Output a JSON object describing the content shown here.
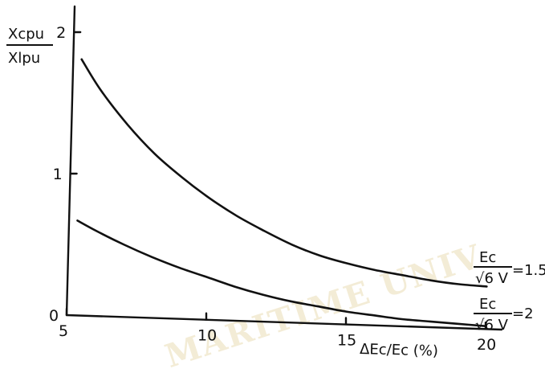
{
  "chart_data": {
    "type": "line",
    "x_axis": {
      "label": "ΔEc/Ec (%)",
      "range": [
        5,
        20
      ],
      "ticks": [
        {
          "value": 5,
          "label": "5"
        },
        {
          "value": 10,
          "label": "10"
        },
        {
          "value": 15,
          "label": "15"
        },
        {
          "value": 20,
          "label": "20"
        }
      ]
    },
    "y_axis": {
      "label_numerator": "Xcpu",
      "label_denominator": "Xlpu",
      "range": [
        0,
        2
      ],
      "ticks": [
        {
          "value": 0,
          "label": "0"
        },
        {
          "value": 1,
          "label": "1"
        },
        {
          "value": 2,
          "label": "2"
        }
      ]
    },
    "series": [
      {
        "label_numerator": "Ec",
        "label_denominator": "√6 V",
        "label_suffix": "=1.5",
        "x": [
          5.3,
          6,
          7,
          8,
          9,
          10,
          11,
          12,
          13,
          14,
          15,
          16,
          17,
          18,
          19,
          20
        ],
        "y": [
          1.81,
          1.6,
          1.36,
          1.16,
          1.0,
          0.86,
          0.74,
          0.64,
          0.55,
          0.48,
          0.43,
          0.39,
          0.36,
          0.33,
          0.31,
          0.3
        ]
      },
      {
        "label_numerator": "Ec",
        "label_denominator": "√6 V",
        "label_suffix": "=2",
        "x": [
          5.3,
          6,
          7,
          8,
          9,
          10,
          11,
          12,
          13,
          14,
          15,
          16,
          17,
          18,
          19,
          20
        ],
        "y": [
          0.67,
          0.6,
          0.51,
          0.43,
          0.36,
          0.3,
          0.24,
          0.19,
          0.15,
          0.12,
          0.09,
          0.07,
          0.05,
          0.04,
          0.03,
          0.02
        ]
      }
    ],
    "grid": false,
    "legend": "none"
  },
  "watermark": "MARITIME UNIV"
}
